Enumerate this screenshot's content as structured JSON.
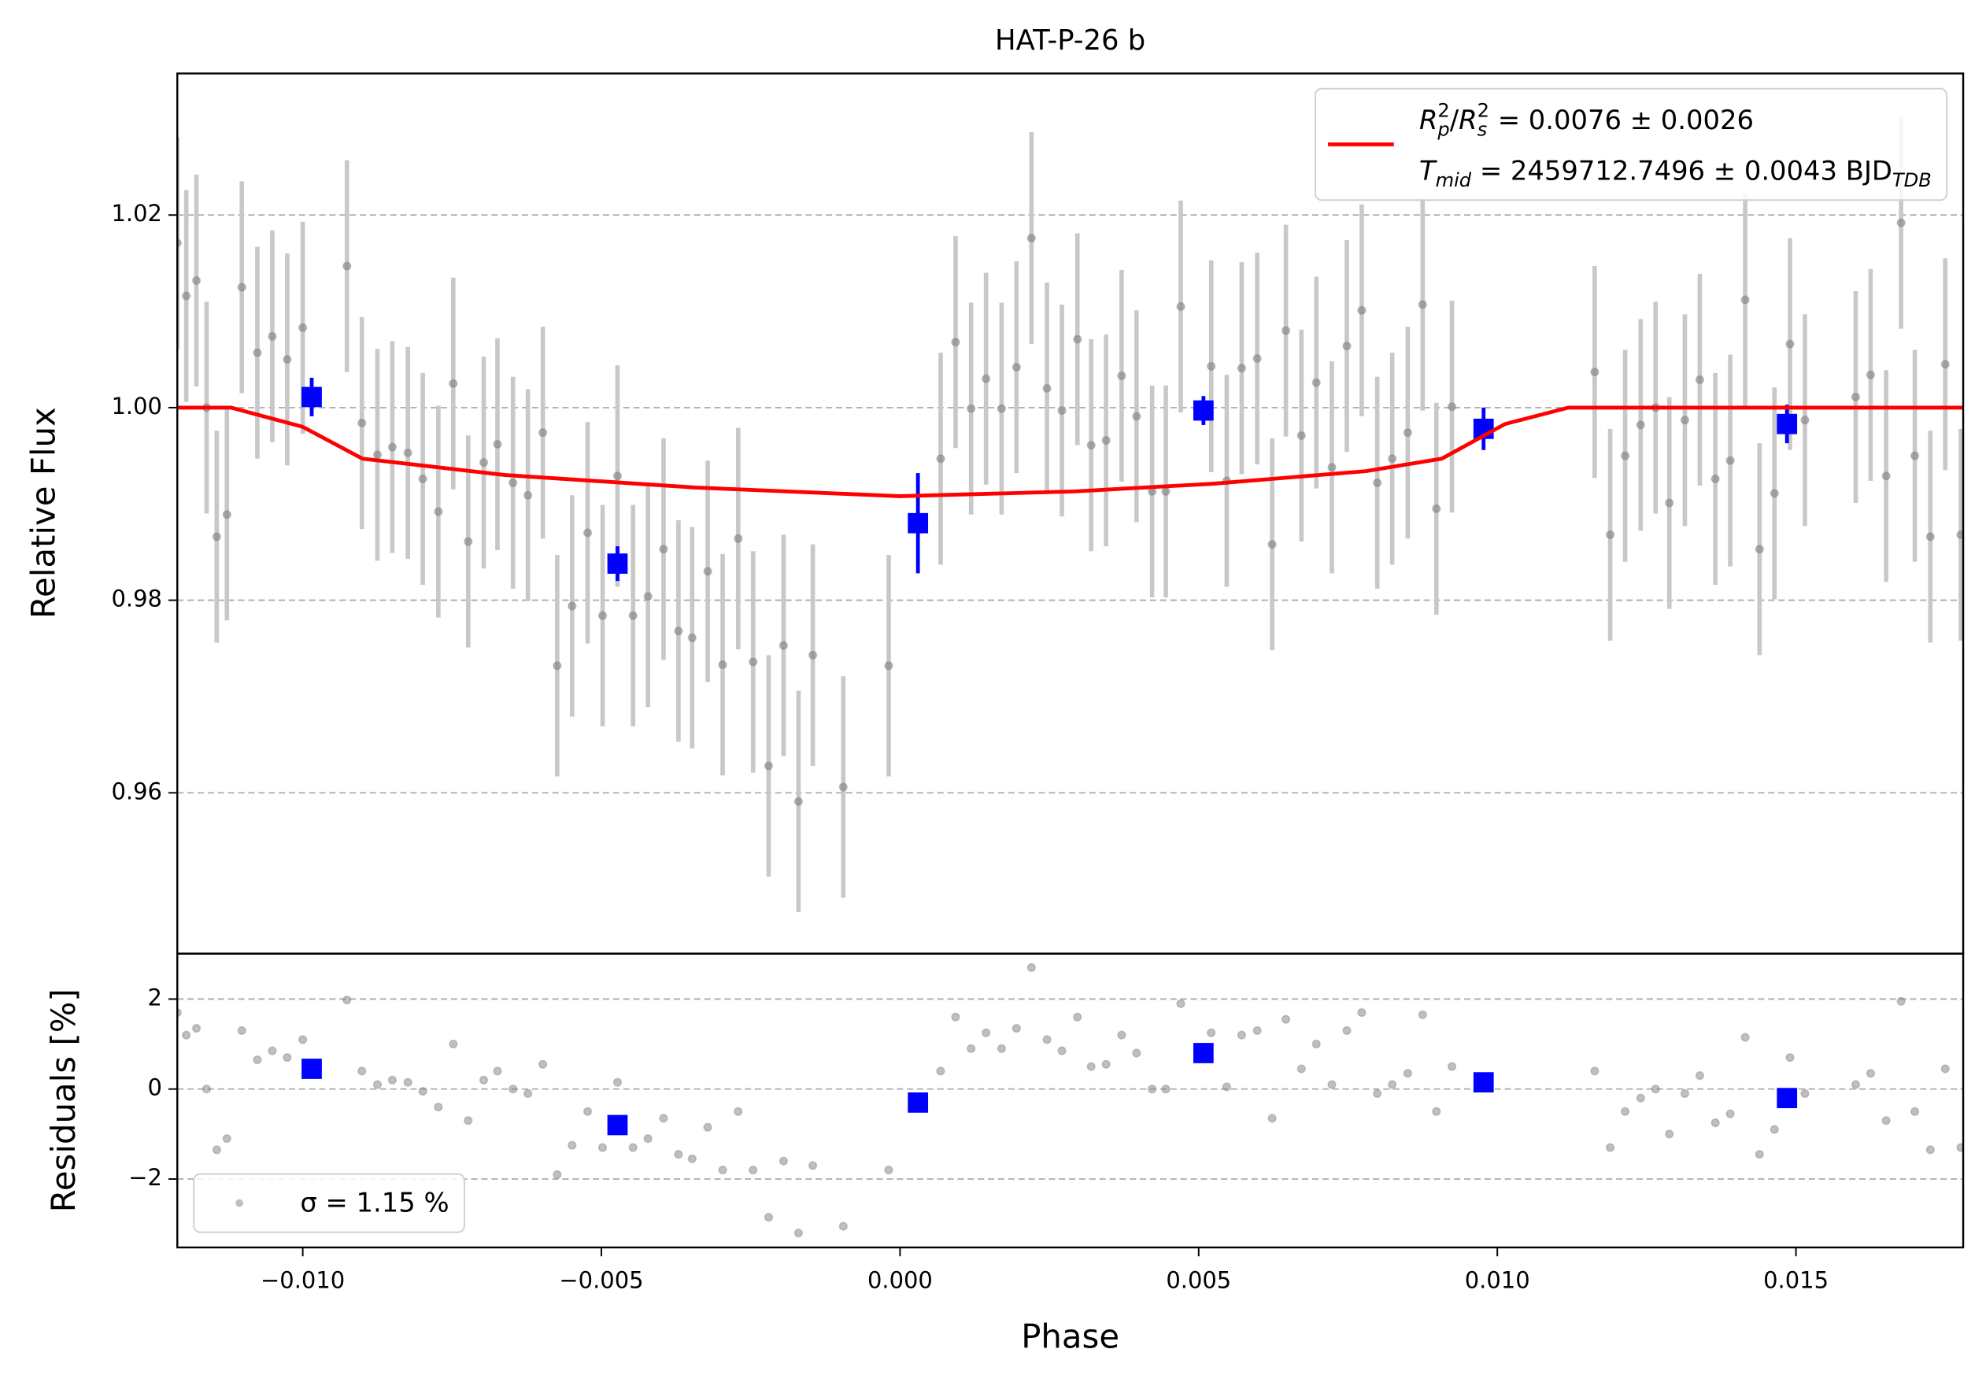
{
  "chart_data": [
    {
      "type": "scatter",
      "title": "HAT-P-26 b",
      "ylabel": "Relative Flux",
      "ylim": [
        0.9433,
        1.0347
      ],
      "yticks": [
        0.96,
        0.98,
        {
          "value": 1,
          "label": "1.00"
        },
        1.02
      ],
      "grid": true,
      "legend_loc": "upper right",
      "series": [
        {
          "color": "#808080",
          "error_color": "#c8c8c8",
          "x": [
            -0.0121,
            -0.01195,
            -0.01178,
            -0.01161,
            -0.01144,
            -0.01127,
            -0.01102,
            -0.01076,
            -0.01051,
            -0.01026,
            -0.01,
            -0.00926,
            -0.00901,
            -0.00875,
            -0.0085,
            -0.00824,
            -0.00799,
            -0.00773,
            -0.00748,
            -0.00723,
            -0.00697,
            -0.00674,
            -0.00648,
            -0.00623,
            -0.00598,
            -0.00574,
            -0.00549,
            -0.00523,
            -0.00498,
            -0.00473,
            -0.00447,
            -0.00422,
            -0.00396,
            -0.00371,
            -0.00348,
            -0.00322,
            -0.00297,
            -0.00271,
            -0.00246,
            -0.0022,
            -0.00195,
            -0.0017,
            -0.00146,
            -0.00095,
            -0.00019,
            0.00068,
            0.00093,
            0.00119,
            0.00144,
            0.0017,
            0.00195,
            0.0022,
            0.00246,
            0.00271,
            0.00297,
            0.0032,
            0.00345,
            0.00371,
            0.00396,
            0.00422,
            0.00445,
            0.0047,
            0.00521,
            0.00547,
            0.00572,
            0.00598,
            0.00623,
            0.00646,
            0.00672,
            0.00697,
            0.00723,
            0.00748,
            0.00773,
            0.00799,
            0.00824,
            0.0085,
            0.00875,
            0.00898,
            0.00924,
            0.01163,
            0.01189,
            0.01214,
            0.0124,
            0.01265,
            0.01288,
            0.01314,
            0.01339,
            0.01365,
            0.0139,
            0.01415,
            0.01439,
            0.01464,
            0.0149,
            0.01515,
            0.016,
            0.01625,
            0.01651,
            0.01676,
            0.01699,
            0.01725,
            0.0175,
            0.01776
          ],
          "values": [
            1.0171,
            1.0116,
            1.0132,
            1.0,
            0.9866,
            0.9889,
            1.0125,
            1.0057,
            1.0074,
            1.005,
            1.0083,
            1.0147,
            0.9984,
            0.9951,
            0.9959,
            0.9953,
            0.9926,
            0.9892,
            1.0025,
            0.9861,
            0.9943,
            0.9962,
            0.9922,
            0.9909,
            0.9974,
            0.9732,
            0.9794,
            0.987,
            0.9784,
            0.9929,
            0.9784,
            0.9804,
            0.9853,
            0.9768,
            0.9761,
            0.983,
            0.9733,
            0.9864,
            0.9736,
            0.9628,
            0.9753,
            0.9591,
            0.9743,
            0.9606,
            0.9732,
            0.9947,
            1.0068,
            0.9999,
            1.003,
            0.9999,
            1.0042,
            1.0176,
            1.002,
            0.9997,
            1.0071,
            0.9961,
            0.9966,
            1.0033,
            0.9991,
            0.9913,
            0.9913,
            1.0105,
            1.0043,
            0.9924,
            1.0041,
            1.0051,
            0.9858,
            1.008,
            0.9971,
            1.0026,
            0.9938,
            1.0064,
            1.0101,
            0.9922,
            0.9947,
            0.9974,
            1.0107,
            0.9895,
            1.0001,
            1.0037,
            0.9868,
            0.995,
            0.9982,
            1.0,
            0.9901,
            0.9987,
            1.0029,
            0.9926,
            0.9945,
            1.0112,
            0.9853,
            0.9911,
            1.0066,
            0.9987,
            1.0011,
            1.0034,
            0.9929,
            1.0192,
            0.995,
            0.9866,
            1.0045,
            0.9868
          ],
          "errors": [
            0.011,
            0.011,
            0.011,
            0.011,
            0.011,
            0.011,
            0.011,
            0.011,
            0.011,
            0.011,
            0.011,
            0.011,
            0.011,
            0.011,
            0.011,
            0.011,
            0.011,
            0.011,
            0.011,
            0.011,
            0.011,
            0.011,
            0.011,
            0.011,
            0.011,
            0.0115,
            0.0115,
            0.0115,
            0.0115,
            0.0115,
            0.0115,
            0.0115,
            0.0115,
            0.0115,
            0.0115,
            0.0115,
            0.0115,
            0.0115,
            0.0115,
            0.0115,
            0.0115,
            0.0115,
            0.0115,
            0.0115,
            0.0115,
            0.011,
            0.011,
            0.011,
            0.011,
            0.011,
            0.011,
            0.011,
            0.011,
            0.011,
            0.011,
            0.011,
            0.011,
            0.011,
            0.011,
            0.011,
            0.011,
            0.011,
            0.011,
            0.011,
            0.011,
            0.011,
            0.011,
            0.011,
            0.011,
            0.011,
            0.011,
            0.011,
            0.011,
            0.011,
            0.011,
            0.011,
            0.011,
            0.011,
            0.011,
            0.011,
            0.011,
            0.011,
            0.011,
            0.011,
            0.011,
            0.011,
            0.011,
            0.011,
            0.011,
            0.011,
            0.011,
            0.011,
            0.011,
            0.011,
            0.011,
            0.011,
            0.011,
            0.011,
            0.011,
            0.011,
            0.011,
            0.011
          ]
        },
        {
          "color": "#0000ff",
          "x": [
            -0.00985,
            -0.00473,
            0.0003,
            0.00508,
            0.00977,
            0.01485
          ],
          "values": [
            1.0011,
            0.9838,
            0.988,
            0.9997,
            0.9978,
            0.9983
          ],
          "errors": [
            0.002,
            0.0018,
            0.0052,
            0.0015,
            0.0022,
            0.002
          ]
        },
        {
          "type": "line",
          "color": "#ff0000",
          "x": [
            -0.0121,
            -0.0112,
            -0.01,
            -0.009,
            -0.00661,
            -0.00343,
            0,
            0.00292,
            0.00525,
            0.0078,
            0.00907,
            0.01013,
            0.01119,
            0.0178
          ],
          "values": [
            1,
            1,
            0.998,
            0.9947,
            0.993,
            0.9917,
            0.9908,
            0.9913,
            0.9921,
            0.9934,
            0.9947,
            0.9983,
            1,
            1
          ],
          "legend": [
            [
              {
                "text": "R",
                "style": "italic"
              },
              {
                "text": "2",
                "script": "sup"
              },
              {
                "text": "p",
                "script": "sub",
                "style": "italic"
              },
              {
                "text": "/"
              },
              {
                "text": "R",
                "style": "italic"
              },
              {
                "text": "2",
                "script": "sup"
              },
              {
                "text": "s",
                "script": "sub",
                "style": "italic"
              },
              {
                "text": " = 0.0076 ± 0.0026"
              }
            ],
            [
              {
                "text": "T",
                "style": "italic"
              },
              {
                "text": "mid",
                "script": "sub",
                "style": "italic"
              },
              {
                "text": " = 2459712.7496 ± 0.0043 BJD"
              },
              {
                "text": "TDB",
                "script": "sub",
                "style": "italic"
              }
            ]
          ]
        }
      ]
    },
    {
      "type": "scatter",
      "ylabel": "Residuals [%]",
      "xlabel": "Phase",
      "xlim": [
        -0.0121,
        0.0178
      ],
      "xticks": [
        {
          "value": -0.01,
          "label": "−0.010"
        },
        {
          "value": -0.005,
          "label": "−0.005"
        },
        {
          "value": 0,
          "label": "0.000"
        },
        {
          "value": 0.005,
          "label": "0.005"
        },
        {
          "value": 0.01,
          "label": "0.010"
        },
        {
          "value": 0.015,
          "label": "0.015"
        }
      ],
      "ylim": [
        -3.52,
        3.01
      ],
      "yticks": [
        {
          "value": -2,
          "label": "−2"
        },
        0,
        2
      ],
      "grid": true,
      "legend_loc": "lower left",
      "series": [
        {
          "name": "σ = 1.15 %",
          "color": "#808080",
          "values": [
            1.7,
            1.2,
            1.35,
            0,
            -1.35,
            -1.1,
            1.3,
            0.65,
            0.85,
            0.7,
            1.1,
            1.98,
            0.4,
            0.1,
            0.2,
            0.15,
            -0.05,
            -0.4,
            1.0,
            -0.7,
            0.2,
            0.4,
            0.0,
            -0.1,
            0.55,
            -1.9,
            -1.25,
            -0.5,
            -1.3,
            0.15,
            -1.3,
            -1.1,
            -0.65,
            -1.45,
            -1.55,
            -0.85,
            -1.8,
            -0.5,
            -1.8,
            -2.85,
            -1.6,
            -3.2,
            -1.7,
            -3.05,
            -1.8,
            0.4,
            1.6,
            0.9,
            1.25,
            0.9,
            1.35,
            2.7,
            1.1,
            0.85,
            1.6,
            0.5,
            0.55,
            1.2,
            0.8,
            0,
            0,
            1.9,
            1.25,
            0.05,
            1.2,
            1.3,
            -0.65,
            1.55,
            0.45,
            1.0,
            0.1,
            1.3,
            1.7,
            -0.1,
            0.1,
            0.35,
            1.65,
            -0.5,
            0.5,
            0.4,
            -1.3,
            -0.5,
            -0.2,
            0,
            -1.0,
            -0.1,
            0.3,
            -0.75,
            -0.55,
            1.15,
            -1.45,
            -0.9,
            0.7,
            -0.1,
            0.1,
            0.35,
            -0.7,
            1.95,
            -0.5,
            -1.35,
            0.45,
            -1.3
          ]
        },
        {
          "color": "#0000ff",
          "values": [
            0.45,
            -0.8,
            -0.3,
            0.8,
            0.15,
            -0.2
          ]
        }
      ]
    }
  ]
}
